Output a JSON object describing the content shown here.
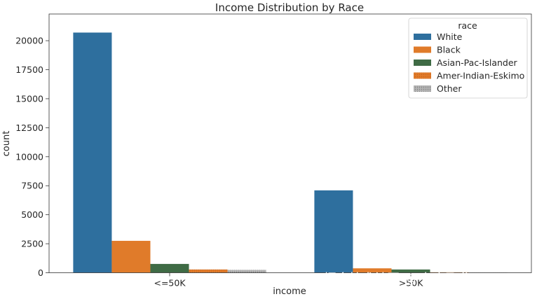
{
  "chart_data": {
    "type": "bar",
    "title": "Income Distribution by Race",
    "xlabel": "income",
    "ylabel": "count",
    "categories": [
      "<=50K",
      ">50K"
    ],
    "series": [
      {
        "name": "White",
        "values": [
          20700,
          7100
        ],
        "color": "#2e6f9e"
      },
      {
        "name": "Black",
        "values": [
          2750,
          380
        ],
        "color": "#e07b2a"
      },
      {
        "name": "Asian-Pac-Islander",
        "values": [
          760,
          280
        ],
        "color": "#3f6b45"
      },
      {
        "name": "Amer-Indian-Eskimo",
        "values": [
          280,
          40
        ],
        "color": "#e07b2a",
        "pattern": "dotted"
      },
      {
        "name": "Other",
        "values": [
          240,
          30
        ],
        "color": "#9a9a9a",
        "pattern": "dotted"
      }
    ],
    "ylim": [
      0,
      22300
    ],
    "yticks": [
      0,
      2500,
      5000,
      7500,
      10000,
      12500,
      15000,
      17500,
      20000
    ],
    "legend_title": "race",
    "legend_position": "top-right",
    "grid": false
  },
  "watermark": "掘金技术社区 @ 布客飞龙"
}
